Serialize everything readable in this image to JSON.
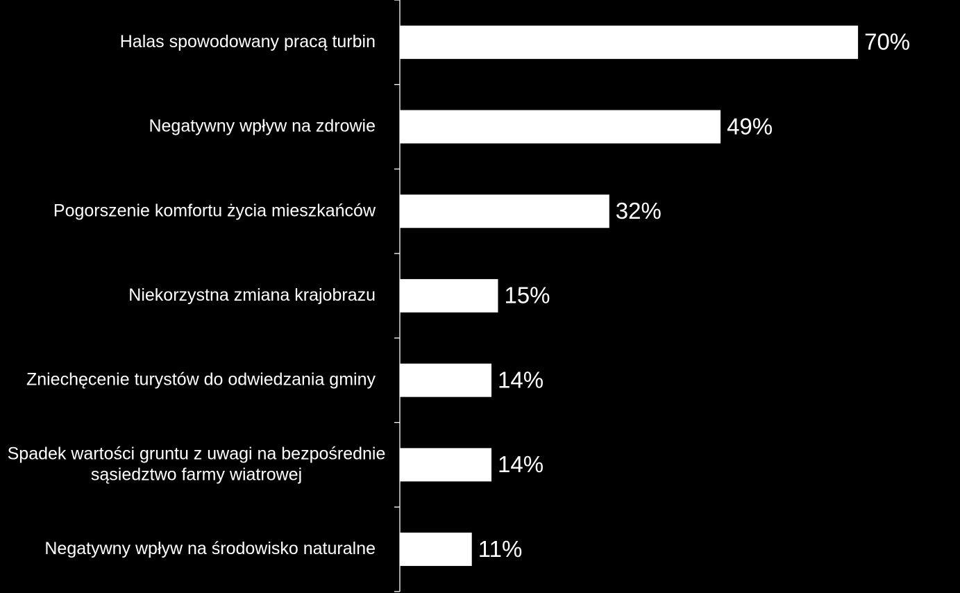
{
  "chart_data": {
    "type": "bar",
    "orientation": "horizontal",
    "categories": [
      [
        "Halas spowodowany pracą turbin"
      ],
      [
        "Negatywny wpływ na zdrowie"
      ],
      [
        "Pogorszenie komfortu życia mieszkańców"
      ],
      [
        "Niekorzystna zmiana krajobrazu"
      ],
      [
        "Zniechęcenie turystów do odwiedzania gminy"
      ],
      [
        "Spadek wartości gruntu z uwagi na bezpośrednie",
        "sąsiedztwo farmy wiatrowej"
      ],
      [
        "Negatywny wpływ na środowisko naturalne"
      ]
    ],
    "values": [
      70,
      49,
      32,
      15,
      14,
      14,
      11
    ],
    "data_labels": [
      "70%",
      "49%",
      "32%",
      "15%",
      "14%",
      "14%",
      "11%"
    ],
    "xlim": [
      0,
      100
    ],
    "grid": false,
    "legend": "none",
    "colors": {
      "background": "#000000",
      "bar": "#ffffff",
      "text": "#ffffff",
      "axis": "#ffffff"
    }
  }
}
